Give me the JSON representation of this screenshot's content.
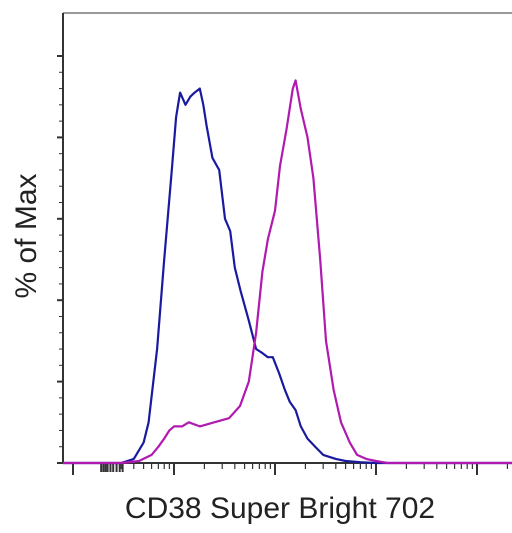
{
  "chart_data": {
    "type": "histogram",
    "title": "",
    "xlabel": "CD38 Super Bright 702",
    "ylabel": "% of Max",
    "x_scale": "log",
    "xlim": [
      1,
      100000
    ],
    "ylim": [
      0,
      100
    ],
    "grid": false,
    "legend": "none",
    "series": [
      {
        "color": "#1a1aa0",
        "x": [
          1.8,
          3.0,
          4.0,
          5.0,
          5.6,
          6.8,
          8.0,
          9.5,
          10.5,
          11.5,
          13.0,
          14.5,
          16.0,
          18.0,
          19.5,
          21.0,
          24.0,
          28.0,
          32.0,
          36.0,
          40.0,
          46.0,
          55.0,
          65.0,
          75.0,
          85.0,
          95.0,
          110.0,
          125.0,
          140.0,
          160.0,
          180.0,
          210.0,
          250.0,
          300.0,
          400.0,
          500.0,
          700.0,
          1000.0,
          1500.0
        ],
        "values": [
          0,
          0,
          1,
          5,
          10,
          28,
          50,
          72,
          85,
          91,
          88,
          90,
          91,
          92,
          88,
          83,
          75,
          72,
          60,
          57,
          48,
          42,
          35,
          28,
          27,
          26,
          26,
          22,
          18,
          15,
          13,
          9,
          6,
          4,
          2,
          1,
          0.5,
          0.2,
          0,
          0
        ]
      },
      {
        "color": "#b01ab0",
        "x": [
          3.0,
          4.5,
          6.0,
          7.0,
          8.0,
          9.0,
          10.0,
          12.0,
          14.0,
          18.0,
          25.0,
          35.0,
          45.0,
          55.0,
          65.0,
          75.0,
          85.0,
          100.0,
          112.0,
          130.0,
          150.0,
          160.0,
          180.0,
          210.0,
          240.0,
          280.0,
          320.0,
          380.0,
          450.0,
          550.0,
          650.0,
          800.0,
          1000.0,
          1300.0,
          2000.0
        ],
        "values": [
          0,
          0.5,
          2,
          4,
          6,
          8,
          9,
          9,
          10,
          9,
          10,
          11,
          14,
          20,
          32,
          47,
          55,
          62,
          73,
          82,
          92,
          94,
          87,
          80,
          70,
          50,
          30,
          18,
          10,
          5,
          2,
          1,
          0.5,
          0,
          0
        ]
      }
    ]
  }
}
